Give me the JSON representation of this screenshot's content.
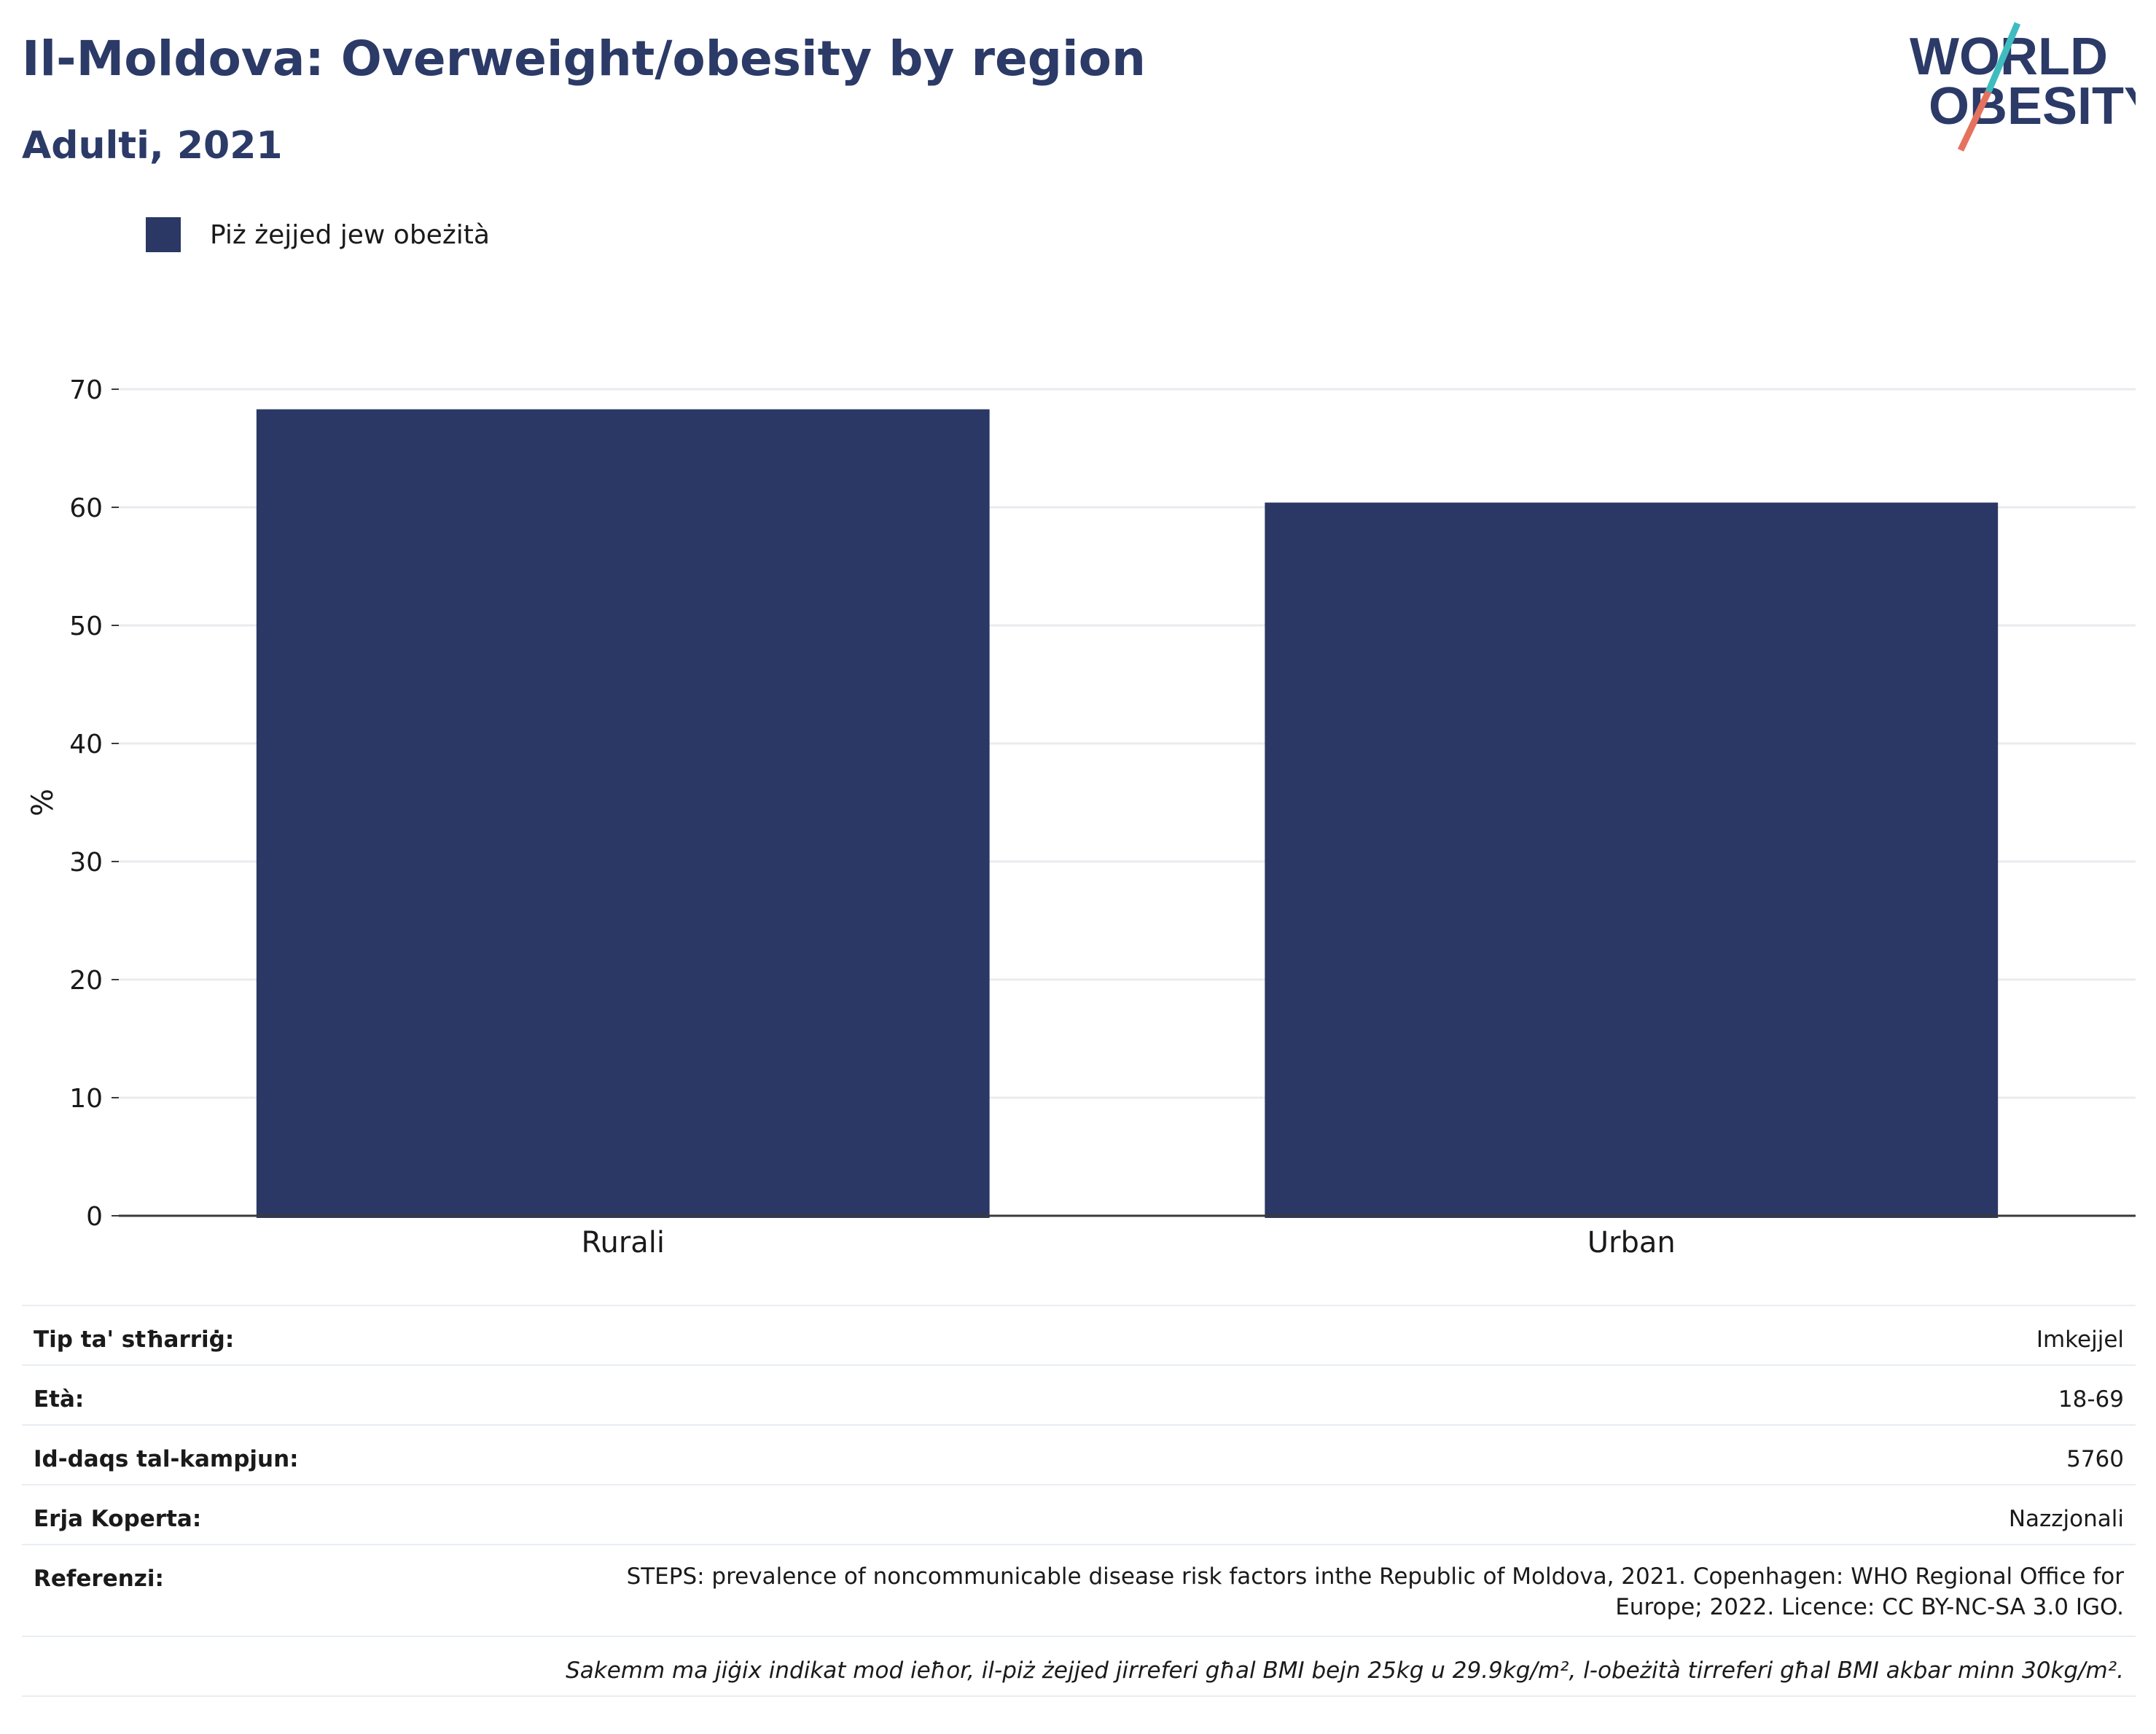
{
  "header": {
    "title": "Il-Moldova: Overweight/obesity by region",
    "subtitle": "Adulti, 2021"
  },
  "logo": {
    "line1": "WORLD",
    "line2": "OBESITY"
  },
  "colors": {
    "bar": "#2b3764",
    "title": "#2b3a67",
    "grid": "#e9ebef",
    "logo_teal": "#3fbcc0",
    "logo_coral": "#e5725f"
  },
  "chart_data": {
    "type": "bar",
    "categories": [
      "Rurali",
      "Urban"
    ],
    "series": [
      {
        "name": "Piż żejjed jew obeżità",
        "values": [
          68.3,
          60.4
        ]
      }
    ],
    "ylabel": "%",
    "xlabel": "",
    "ylim": [
      0,
      70
    ],
    "yticks": [
      0,
      10,
      20,
      30,
      40,
      50,
      60,
      70
    ],
    "grid": true,
    "legend_position": "top-left"
  },
  "info": {
    "rows": [
      {
        "label": "Tip ta' stħarriġ:",
        "value": "Imkejjel"
      },
      {
        "label": "Età:",
        "value": "18-69"
      },
      {
        "label": "Id-daqs tal-kampjun:",
        "value": "5760"
      },
      {
        "label": "Erja Koperta:",
        "value": "Nazzjonali"
      }
    ],
    "refs_label": "Referenzi:",
    "refs_value": "STEPS: prevalence of noncommunicable disease risk factors inthe Republic of Moldova, 2021. Copenhagen: WHO Regional Office for Europe; 2022. Licence: CC BY-NC-SA 3.0 IGO.",
    "note": "Sakemm ma jiġix indikat mod ieħor, il-piż żejjed jirreferi għal BMI bejn 25kg u 29.9kg/m², l-obeżità tirreferi għal BMI akbar minn 30kg/m²."
  }
}
